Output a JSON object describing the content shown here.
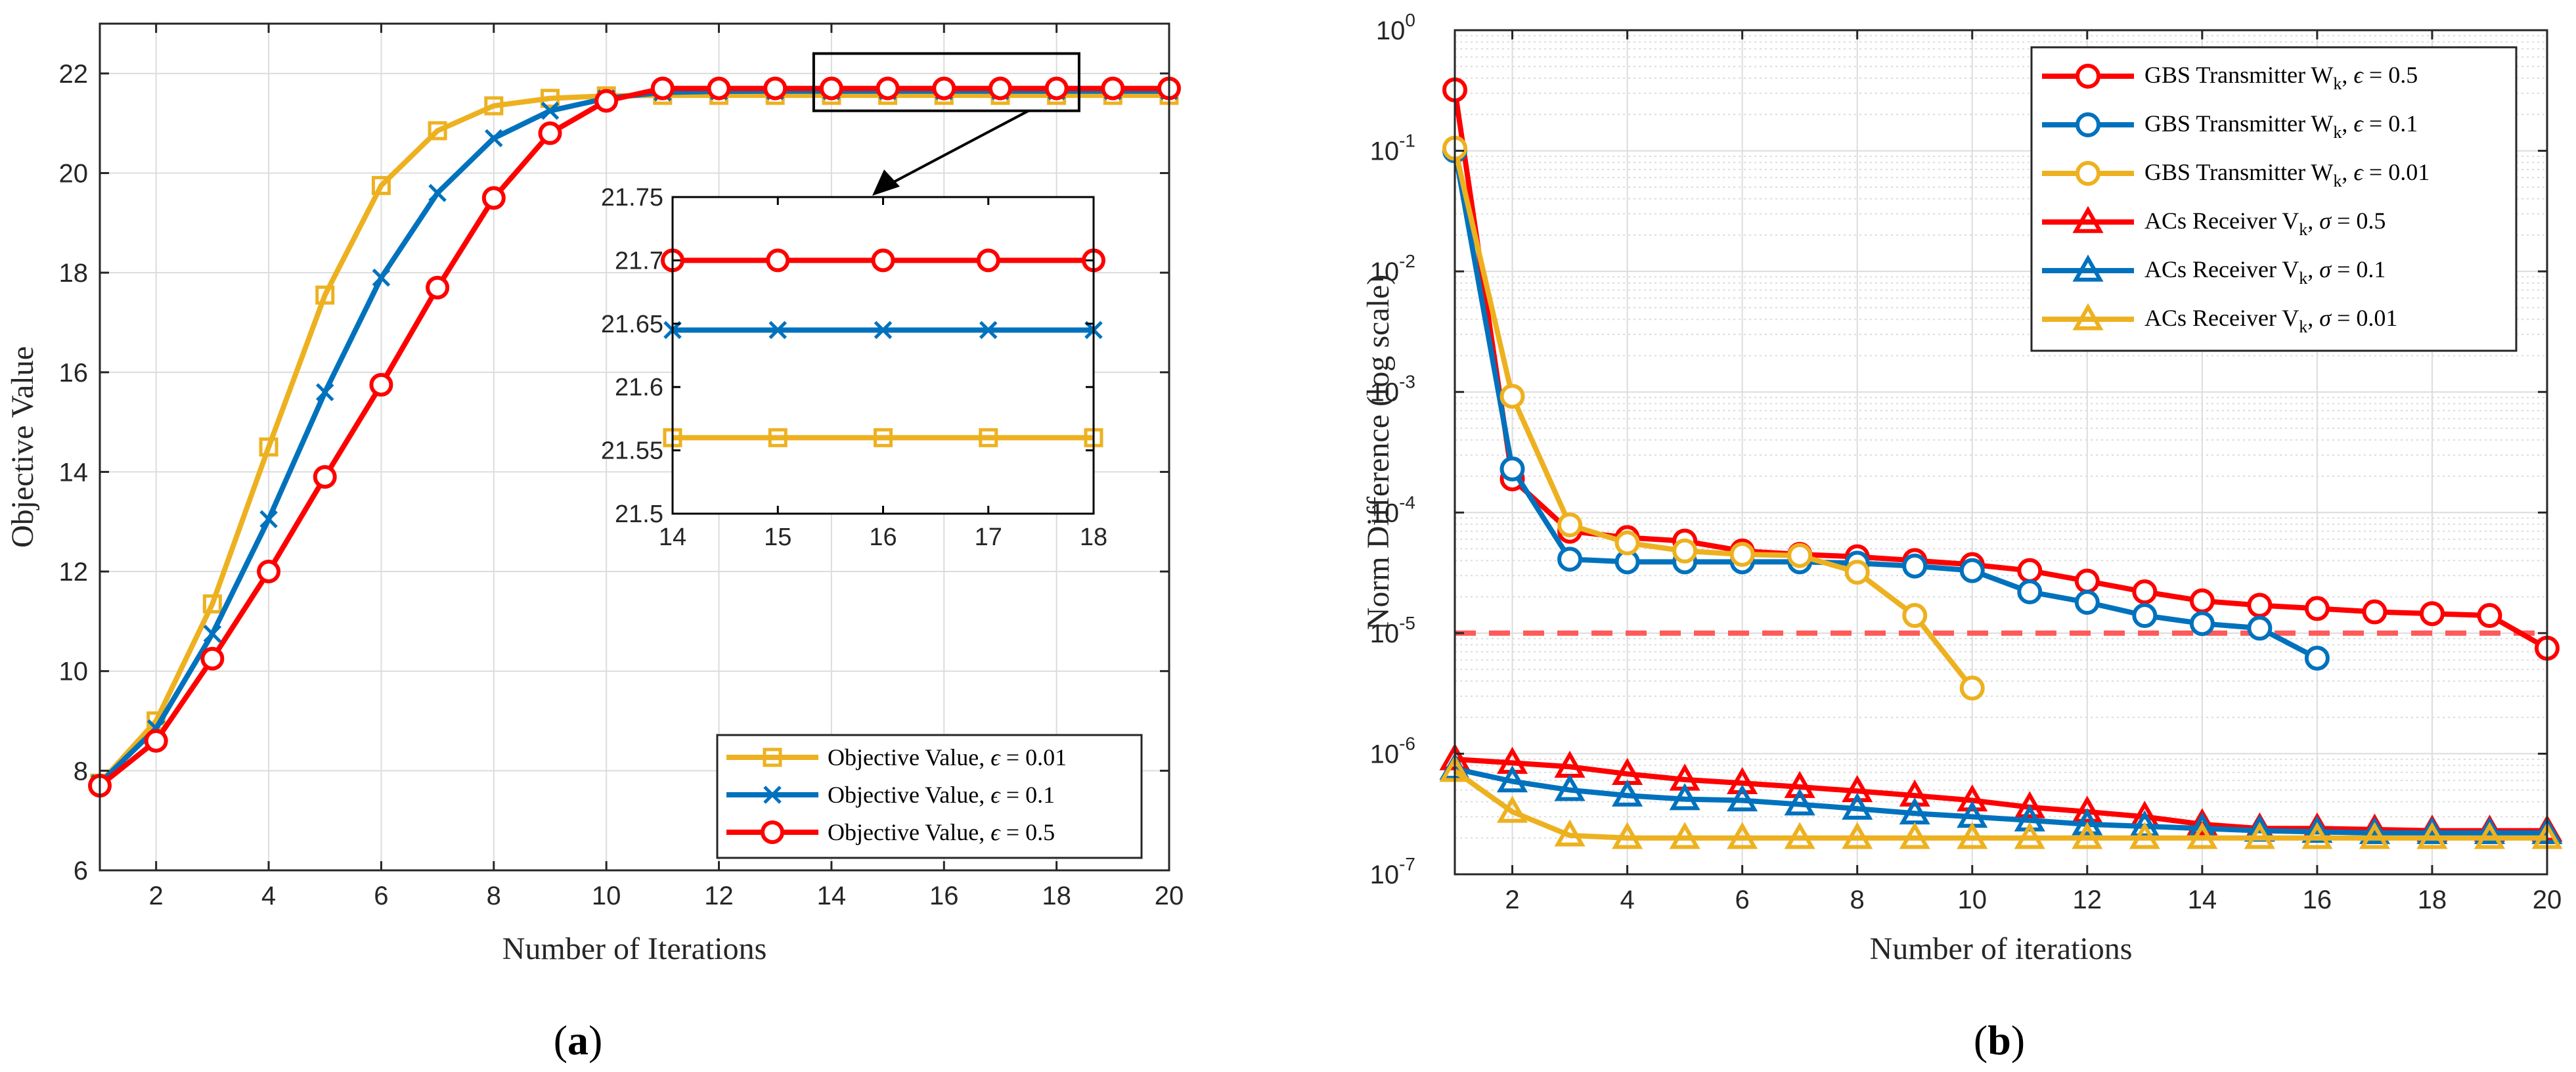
{
  "colors": {
    "red": "#ff0000",
    "blue": "#0072bd",
    "yellow": "#edb120",
    "grid": "#dcdcdc",
    "threshold": "#ff5a5a"
  },
  "chart_data": [
    {
      "id": "a",
      "type": "line",
      "caption_letter": "a",
      "caption_open": "(",
      "caption_close": ")",
      "xlabel": "Number of Iterations",
      "ylabel": "Objective Value",
      "xlim": [
        1,
        20
      ],
      "ylim": [
        6,
        23
      ],
      "xticks": [
        2,
        4,
        6,
        8,
        10,
        12,
        14,
        16,
        18,
        20
      ],
      "yticks": [
        6,
        8,
        10,
        12,
        14,
        16,
        18,
        20,
        22
      ],
      "grid": true,
      "legend_position": "bottom-right",
      "x": [
        1,
        2,
        3,
        4,
        5,
        6,
        7,
        8,
        9,
        10,
        11,
        12,
        13,
        14,
        15,
        16,
        17,
        18,
        19,
        20
      ],
      "series": [
        {
          "legend_prefix": "Objective Value, ",
          "legend_sym": "ϵ",
          "legend_suffix": " = 0.01",
          "color": "yellow",
          "marker": "square",
          "values": [
            7.75,
            9.0,
            11.35,
            14.5,
            17.55,
            19.75,
            20.85,
            21.35,
            21.5,
            21.55,
            21.56,
            21.56,
            21.56,
            21.56,
            21.56,
            21.56,
            21.56,
            21.56,
            21.56,
            21.56
          ]
        },
        {
          "legend_prefix": "Objective Value, ",
          "legend_sym": "ϵ",
          "legend_suffix": " = 0.1",
          "color": "blue",
          "marker": "x",
          "values": [
            7.75,
            8.85,
            10.75,
            13.05,
            15.6,
            17.9,
            19.6,
            20.7,
            21.25,
            21.5,
            21.62,
            21.64,
            21.645,
            21.645,
            21.645,
            21.645,
            21.645,
            21.645,
            21.645,
            21.645
          ]
        },
        {
          "legend_prefix": "Objective Value, ",
          "legend_sym": "ϵ",
          "legend_suffix": " = 0.5",
          "color": "red",
          "marker": "circle",
          "values": [
            7.7,
            8.6,
            10.25,
            12.0,
            13.9,
            15.75,
            17.7,
            19.5,
            20.8,
            21.45,
            21.7,
            21.7,
            21.7,
            21.7,
            21.7,
            21.7,
            21.7,
            21.7,
            21.7,
            21.7
          ]
        }
      ],
      "inset": {
        "xlim": [
          14,
          18
        ],
        "ylim": [
          21.5,
          21.75
        ],
        "xticks": [
          14,
          15,
          16,
          17,
          18
        ],
        "yticks": [
          21.5,
          21.55,
          21.6,
          21.65,
          21.7,
          21.75
        ],
        "ytick_labels": [
          "21.5",
          "21.55",
          "21.6",
          "21.65",
          "21.7",
          "21.75"
        ],
        "grid": false,
        "zoom_box": {
          "xlim": [
            14,
            18.4
          ],
          "ylim": [
            21.25,
            22.4
          ]
        }
      }
    },
    {
      "id": "b",
      "type": "line",
      "y_scale": "log",
      "caption_letter": "b",
      "caption_open": "(",
      "caption_close": ")",
      "xlabel": "Number of iterations",
      "ylabel": "Norm Difference (log scale)",
      "xlim": [
        1,
        20
      ],
      "ylim": [
        1e-07,
        1
      ],
      "xticks": [
        2,
        4,
        6,
        8,
        10,
        12,
        14,
        16,
        18,
        20
      ],
      "yticks": [
        {
          "base": "10",
          "exp": "0"
        },
        {
          "base": "10",
          "exp": "-1"
        },
        {
          "base": "10",
          "exp": "-2"
        },
        {
          "base": "10",
          "exp": "-3"
        },
        {
          "base": "10",
          "exp": "-4"
        },
        {
          "base": "10",
          "exp": "-5"
        },
        {
          "base": "10",
          "exp": "-6"
        },
        {
          "base": "10",
          "exp": "-7"
        }
      ],
      "grid": true,
      "legend_position": "top-right",
      "threshold": 1e-05,
      "series": [
        {
          "legend_prefix": "GBS Transmitter W",
          "legend_sub": "k",
          "legend_mid": ", ",
          "legend_sym": "ϵ",
          "legend_suffix": " = 0.5",
          "color": "red",
          "marker": "circle",
          "x": [
            1,
            2,
            3,
            4,
            5,
            6,
            7,
            8,
            9,
            10,
            11,
            12,
            13,
            14,
            15,
            16,
            17,
            18,
            19,
            20
          ],
          "values": [
            0.32,
            0.00019,
            7e-05,
            6.2e-05,
            5.8e-05,
            4.8e-05,
            4.5e-05,
            4.3e-05,
            4e-05,
            3.7e-05,
            3.3e-05,
            2.7e-05,
            2.2e-05,
            1.85e-05,
            1.7e-05,
            1.6e-05,
            1.5e-05,
            1.45e-05,
            1.4e-05,
            7.5e-06
          ]
        },
        {
          "legend_prefix": "GBS Transmitter W",
          "legend_sub": "k",
          "legend_mid": ", ",
          "legend_sym": "ϵ",
          "legend_suffix": " = 0.1",
          "color": "blue",
          "marker": "circle",
          "x": [
            1,
            2,
            3,
            4,
            5,
            6,
            7,
            8,
            9,
            10,
            11,
            12,
            13,
            14,
            15,
            16
          ],
          "values": [
            0.1,
            0.00023,
            4.1e-05,
            3.9e-05,
            3.9e-05,
            3.9e-05,
            3.9e-05,
            3.8e-05,
            3.6e-05,
            3.3e-05,
            2.2e-05,
            1.8e-05,
            1.4e-05,
            1.2e-05,
            1.1e-05,
            6.2e-06
          ]
        },
        {
          "legend_prefix": "GBS Transmitter W",
          "legend_sub": "k",
          "legend_mid": ", ",
          "legend_sym": "ϵ",
          "legend_suffix": " = 0.01",
          "color": "yellow",
          "marker": "circle",
          "x": [
            1,
            2,
            3,
            4,
            5,
            6,
            7,
            8,
            9,
            10
          ],
          "values": [
            0.105,
            0.00092,
            7.9e-05,
            5.6e-05,
            4.8e-05,
            4.5e-05,
            4.4e-05,
            3.2e-05,
            1.4e-05,
            3.5e-06
          ]
        },
        {
          "legend_prefix": "ACs Receiver V",
          "legend_sub": "k",
          "legend_mid": ", ",
          "legend_sym": "σ",
          "legend_suffix": " = 0.5",
          "color": "red",
          "marker": "triangle",
          "x": [
            1,
            2,
            3,
            4,
            5,
            6,
            7,
            8,
            9,
            10,
            11,
            12,
            13,
            14,
            15,
            16,
            17,
            18,
            19,
            20
          ],
          "values": [
            9e-07,
            8.4e-07,
            7.8e-07,
            6.8e-07,
            6.1e-07,
            5.7e-07,
            5.3e-07,
            4.9e-07,
            4.5e-07,
            4.1e-07,
            3.6e-07,
            3.3e-07,
            3e-07,
            2.6e-07,
            2.4e-07,
            2.4e-07,
            2.35e-07,
            2.3e-07,
            2.3e-07,
            2.3e-07
          ]
        },
        {
          "legend_prefix": "ACs Receiver V",
          "legend_sub": "k",
          "legend_mid": ", ",
          "legend_sym": "σ",
          "legend_suffix": " = 0.1",
          "color": "blue",
          "marker": "triangle",
          "x": [
            1,
            2,
            3,
            4,
            5,
            6,
            7,
            8,
            9,
            10,
            11,
            12,
            13,
            14,
            15,
            16,
            17,
            18,
            19,
            20
          ],
          "values": [
            7.5e-07,
            5.9e-07,
            5e-07,
            4.5e-07,
            4.2e-07,
            4.1e-07,
            3.8e-07,
            3.5e-07,
            3.2e-07,
            3e-07,
            2.8e-07,
            2.6e-07,
            2.5e-07,
            2.4e-07,
            2.3e-07,
            2.25e-07,
            2.2e-07,
            2.2e-07,
            2.2e-07,
            2.2e-07
          ]
        },
        {
          "legend_prefix": "ACs Receiver V",
          "legend_sub": "k",
          "legend_mid": ", ",
          "legend_sym": "σ",
          "legend_suffix": " = 0.01",
          "color": "yellow",
          "marker": "triangle",
          "x": [
            1,
            2,
            3,
            4,
            5,
            6,
            7,
            8,
            9,
            10,
            11,
            12,
            13,
            14,
            15,
            16,
            17,
            18,
            19,
            20
          ],
          "values": [
            7.2e-07,
            3.3e-07,
            2.1e-07,
            2e-07,
            2e-07,
            2e-07,
            2e-07,
            2e-07,
            2e-07,
            2e-07,
            2e-07,
            2e-07,
            2e-07,
            2e-07,
            2e-07,
            2e-07,
            2e-07,
            2e-07,
            2e-07,
            2e-07
          ]
        }
      ]
    }
  ]
}
